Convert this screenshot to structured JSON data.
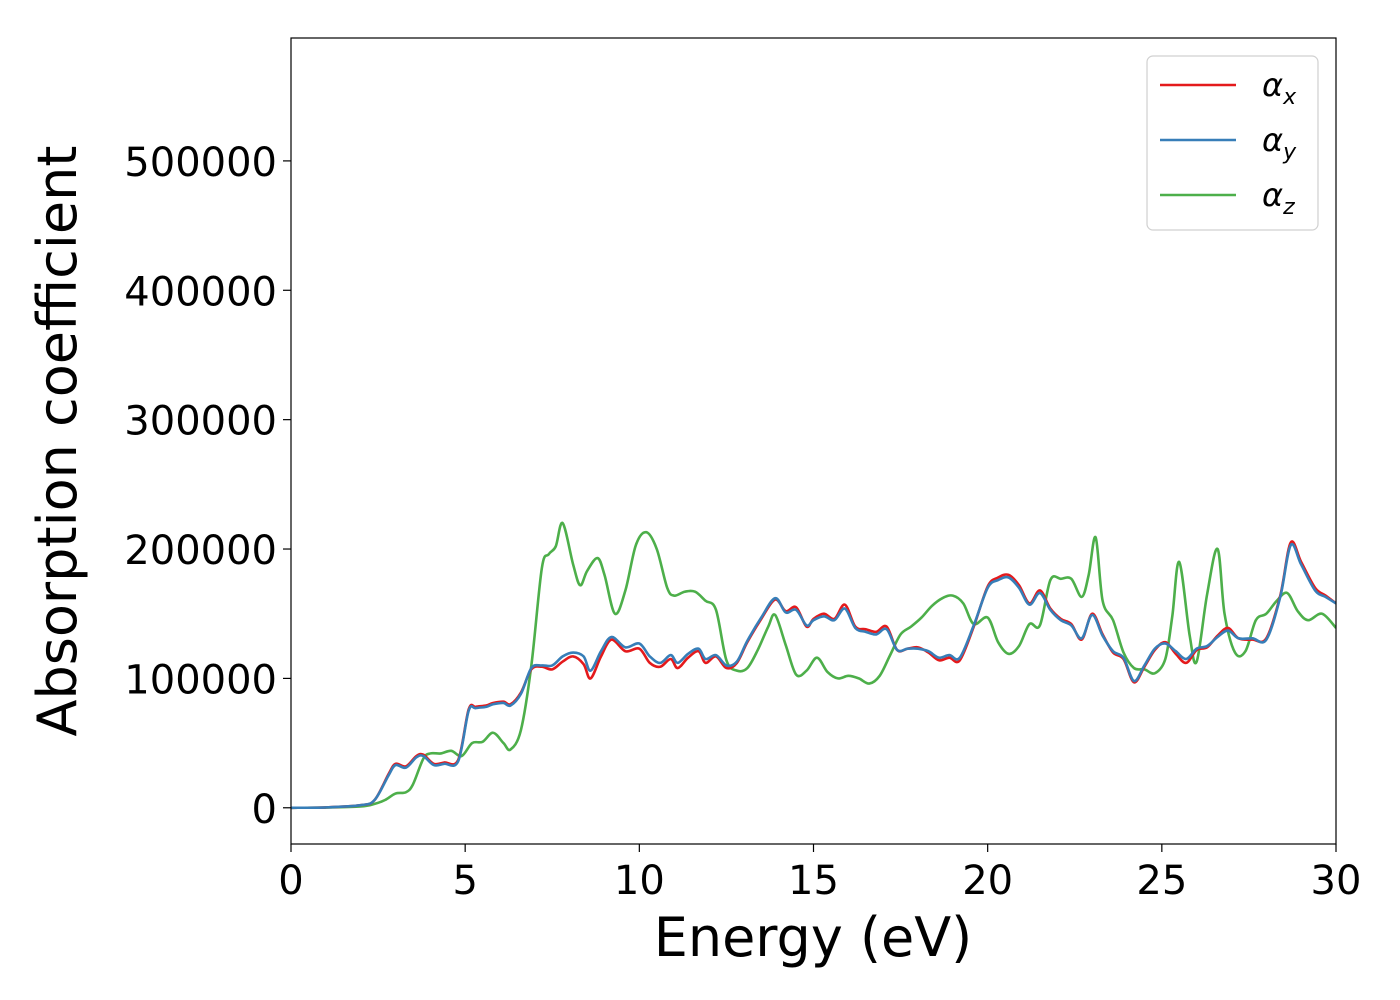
{
  "chart_data": {
    "type": "line",
    "title": "",
    "xlabel": "Energy (eV)",
    "ylabel": "Absorption coefficient",
    "xlim": [
      0,
      30
    ],
    "ylim": [
      -28000,
      595000
    ],
    "xticks": [
      0,
      5,
      10,
      15,
      20,
      25,
      30
    ],
    "xtick_labels": [
      "0",
      "5",
      "10",
      "15",
      "20",
      "25",
      "30"
    ],
    "yticks": [
      0,
      100000,
      200000,
      300000,
      400000,
      500000
    ],
    "ytick_labels": [
      "0",
      "100000",
      "200000",
      "300000",
      "400000",
      "500000"
    ],
    "grid": false,
    "legend_position": "top-right",
    "series": [
      {
        "name": "α",
        "subscript": "x",
        "color": "#e41a1c",
        "x": [
          0,
          1,
          2,
          2.4,
          2.8,
          3.0,
          3.3,
          3.6,
          3.8,
          4.1,
          4.4,
          4.8,
          5.1,
          5.3,
          5.6,
          5.8,
          6.1,
          6.3,
          6.6,
          6.9,
          7.2,
          7.5,
          7.8,
          8.1,
          8.4,
          8.6,
          8.9,
          9.2,
          9.6,
          10.0,
          10.3,
          10.6,
          10.9,
          11.1,
          11.4,
          11.7,
          11.9,
          12.2,
          12.5,
          12.8,
          13.1,
          13.5,
          13.9,
          14.2,
          14.5,
          14.8,
          15.0,
          15.3,
          15.6,
          15.9,
          16.2,
          16.5,
          16.8,
          17.1,
          17.4,
          17.7,
          18.0,
          18.3,
          18.6,
          18.9,
          19.2,
          19.6,
          20.0,
          20.3,
          20.6,
          20.9,
          21.2,
          21.5,
          21.8,
          22.1,
          22.4,
          22.7,
          23.0,
          23.3,
          23.6,
          23.9,
          24.2,
          24.5,
          24.8,
          25.1,
          25.4,
          25.7,
          26.0,
          26.3,
          26.6,
          26.9,
          27.2,
          27.6,
          28.0,
          28.4,
          28.7,
          29.0,
          29.4,
          29.7,
          30.0
        ],
        "values": [
          0,
          300,
          2000,
          6000,
          26000,
          34000,
          32000,
          40000,
          41000,
          34000,
          35000,
          37000,
          76000,
          78000,
          79000,
          81000,
          82000,
          80000,
          89000,
          107000,
          109000,
          107000,
          113000,
          117000,
          111000,
          100000,
          117000,
          130000,
          121000,
          123000,
          112000,
          109000,
          115000,
          108000,
          116000,
          121000,
          112000,
          117000,
          108000,
          112000,
          128000,
          146000,
          161000,
          152000,
          155000,
          140000,
          146000,
          150000,
          146000,
          157000,
          140000,
          138000,
          136000,
          140000,
          122000,
          123000,
          124000,
          120000,
          114000,
          116000,
          114000,
          140000,
          171000,
          178000,
          180000,
          172000,
          158000,
          168000,
          154000,
          146000,
          142000,
          130000,
          150000,
          134000,
          120000,
          115000,
          97000,
          109000,
          122000,
          128000,
          119000,
          112000,
          122000,
          124000,
          133000,
          139000,
          131000,
          130000,
          131000,
          164000,
          205000,
          190000,
          170000,
          164000,
          158000
        ]
      },
      {
        "name": "α",
        "subscript": "y",
        "color": "#377eb8",
        "x": [
          0,
          1,
          2,
          2.4,
          2.8,
          3.0,
          3.3,
          3.6,
          3.8,
          4.1,
          4.4,
          4.8,
          5.1,
          5.3,
          5.6,
          5.8,
          6.1,
          6.3,
          6.6,
          6.9,
          7.2,
          7.5,
          7.8,
          8.1,
          8.4,
          8.6,
          8.9,
          9.2,
          9.6,
          10.0,
          10.3,
          10.6,
          10.9,
          11.1,
          11.4,
          11.7,
          11.9,
          12.2,
          12.5,
          12.8,
          13.1,
          13.5,
          13.9,
          14.2,
          14.5,
          14.8,
          15.0,
          15.3,
          15.6,
          15.9,
          16.2,
          16.5,
          16.8,
          17.1,
          17.4,
          17.7,
          18.0,
          18.3,
          18.6,
          18.9,
          19.2,
          19.6,
          20.0,
          20.3,
          20.6,
          20.9,
          21.2,
          21.5,
          21.8,
          22.1,
          22.4,
          22.7,
          23.0,
          23.3,
          23.6,
          23.9,
          24.2,
          24.5,
          24.8,
          25.1,
          25.4,
          25.7,
          26.0,
          26.3,
          26.6,
          26.9,
          27.2,
          27.6,
          28.0,
          28.4,
          28.7,
          29.0,
          29.4,
          29.7,
          30.0
        ],
        "values": [
          0,
          300,
          2000,
          6000,
          25000,
          33000,
          31000,
          39000,
          40000,
          33000,
          34000,
          36000,
          75000,
          77000,
          78000,
          80000,
          81000,
          79000,
          88000,
          108000,
          110000,
          110000,
          117000,
          120000,
          117000,
          106000,
          121000,
          132000,
          124000,
          127000,
          117000,
          112000,
          118000,
          112000,
          119000,
          123000,
          115000,
          118000,
          110000,
          113000,
          129000,
          147000,
          162000,
          151000,
          153000,
          141000,
          145000,
          148000,
          145000,
          154000,
          139000,
          136000,
          134000,
          138000,
          122000,
          123000,
          123000,
          121000,
          116000,
          118000,
          116000,
          141000,
          170000,
          176000,
          178000,
          170000,
          157000,
          166000,
          153000,
          145000,
          141000,
          131000,
          149000,
          133000,
          121000,
          116000,
          98000,
          110000,
          123000,
          127000,
          121000,
          115000,
          123000,
          125000,
          132000,
          137000,
          131000,
          131000,
          130000,
          163000,
          203000,
          188000,
          168000,
          163000,
          158000
        ]
      },
      {
        "name": "α",
        "subscript": "z",
        "color": "#4daf4a",
        "x": [
          0,
          1,
          2,
          2.4,
          2.7,
          3.0,
          3.3,
          3.5,
          3.8,
          4.0,
          4.3,
          4.6,
          4.9,
          5.2,
          5.5,
          5.8,
          6.1,
          6.3,
          6.6,
          6.9,
          7.2,
          7.4,
          7.6,
          7.8,
          8.1,
          8.3,
          8.5,
          8.8,
          9.0,
          9.3,
          9.6,
          9.9,
          10.2,
          10.5,
          10.8,
          11.0,
          11.3,
          11.6,
          11.9,
          12.2,
          12.5,
          12.8,
          13.1,
          13.4,
          13.7,
          13.9,
          14.2,
          14.5,
          14.8,
          15.1,
          15.4,
          15.7,
          16.0,
          16.3,
          16.6,
          16.9,
          17.2,
          17.5,
          17.8,
          18.1,
          18.4,
          18.7,
          19.0,
          19.3,
          19.6,
          20.0,
          20.3,
          20.6,
          20.9,
          21.2,
          21.5,
          21.8,
          22.1,
          22.4,
          22.7,
          22.9,
          23.1,
          23.3,
          23.6,
          23.9,
          24.2,
          24.5,
          24.8,
          25.1,
          25.3,
          25.5,
          25.8,
          26.0,
          26.3,
          26.6,
          26.8,
          27.1,
          27.4,
          27.7,
          28.0,
          28.3,
          28.6,
          28.9,
          29.2,
          29.6,
          30.0
        ],
        "values": [
          0,
          200,
          1000,
          3000,
          6000,
          11000,
          12000,
          18000,
          38000,
          42000,
          42000,
          44000,
          40000,
          50000,
          51000,
          58000,
          50000,
          45000,
          60000,
          110000,
          185000,
          196000,
          202000,
          220000,
          188000,
          172000,
          183000,
          193000,
          180000,
          150000,
          168000,
          203000,
          213000,
          200000,
          170000,
          164000,
          167000,
          167000,
          160000,
          153000,
          114000,
          106000,
          108000,
          122000,
          140000,
          149000,
          126000,
          103000,
          106000,
          116000,
          105000,
          100000,
          102000,
          100000,
          96000,
          102000,
          118000,
          134000,
          140000,
          147000,
          156000,
          162000,
          164000,
          158000,
          142000,
          147000,
          128000,
          119000,
          125000,
          142000,
          141000,
          176000,
          177000,
          177000,
          163000,
          180000,
          209000,
          160000,
          145000,
          120000,
          108000,
          107000,
          104000,
          115000,
          148000,
          190000,
          133000,
          113000,
          165000,
          200000,
          150000,
          120000,
          121000,
          145000,
          150000,
          160000,
          166000,
          152000,
          145000,
          150000,
          139000
        ]
      }
    ]
  }
}
